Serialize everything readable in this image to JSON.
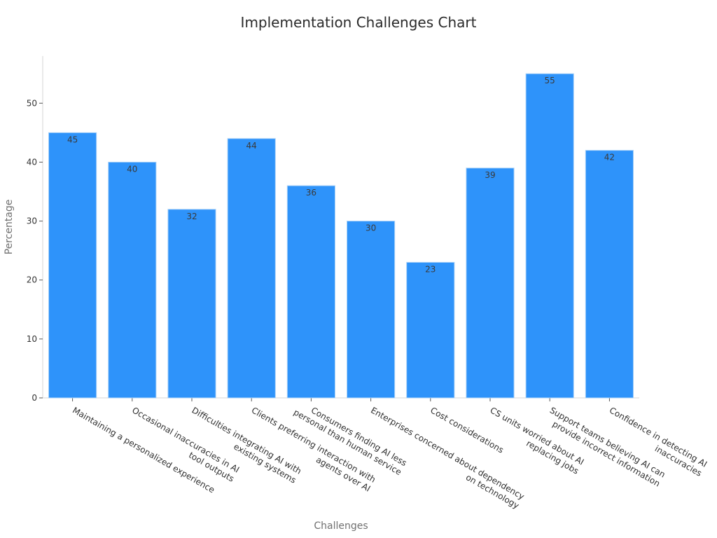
{
  "chart_data": {
    "type": "bar",
    "title": "Implementation Challenges Chart",
    "xlabel": "Challenges",
    "ylabel": "Percentage",
    "ylim": [
      0,
      58
    ],
    "yticks": [
      0,
      10,
      20,
      30,
      40,
      50
    ],
    "grid": false,
    "bar_color": "#2e93fa",
    "categories": [
      [
        "Maintaining a personalized experience"
      ],
      [
        "Occasional inaccuracies in AI",
        "tool outputs"
      ],
      [
        "Difficulties integrating AI with",
        "existing systems"
      ],
      [
        "Clients preferring interaction with",
        "agents over AI"
      ],
      [
        "Consumers finding AI less",
        "personal than human service"
      ],
      [
        "Enterprises concerned about dependency",
        "on technology"
      ],
      [
        "Cost considerations"
      ],
      [
        "CS units worried about AI",
        "replacing jobs"
      ],
      [
        "Support teams believing AI can",
        "provide incorrect information"
      ],
      [
        "Confidence in detecting AI",
        "inaccuracies"
      ]
    ],
    "values": [
      45,
      40,
      32,
      44,
      36,
      30,
      23,
      39,
      55,
      42
    ]
  }
}
